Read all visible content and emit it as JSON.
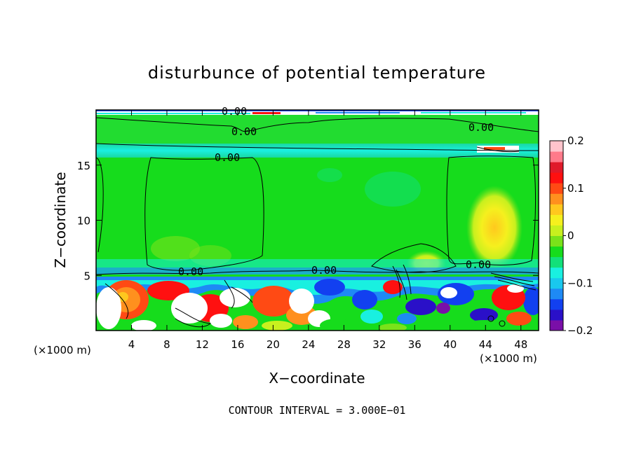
{
  "chart_data": {
    "type": "heatmap",
    "title": "disturbunce of potential temperature",
    "xlabel": "X−coordinate",
    "ylabel": "Z−coordinate",
    "x_unit_left": "(×1000 m)",
    "x_unit_right": "(×1000 m)",
    "xlim": [
      0,
      50
    ],
    "ylim": [
      0,
      20
    ],
    "x_ticks": [
      4,
      8,
      12,
      16,
      20,
      24,
      28,
      32,
      36,
      40,
      44,
      48
    ],
    "y_ticks": [
      5,
      10,
      15
    ],
    "colorbar": {
      "min": -0.2,
      "max": 0.2,
      "tick_values": [
        0.2,
        0.1,
        0,
        -0.1,
        -0.2
      ],
      "tick_labels": [
        "0.2",
        "0.1",
        "0",
        "−0.1",
        "−0.2"
      ],
      "colors": [
        "#7a0fa8",
        "#2a10c8",
        "#1240f0",
        "#1e8af5",
        "#19c8ee",
        "#19f0e0",
        "#12e07a",
        "#16dc1c",
        "#7ae21a",
        "#c8f01e",
        "#f5f01e",
        "#ffc81e",
        "#ff901e",
        "#ff4a14",
        "#ff1010",
        "#e01a2a",
        "#ff7a8a",
        "#ffc4cc"
      ]
    },
    "contour_interval": "CONTOUR INTERVAL = 3.000E−01",
    "contour_labels": [
      "0.00",
      "0.00",
      "0.00",
      "0.00",
      "0.00",
      "0.00",
      "0.00"
    ],
    "grid": false,
    "legend": "colorbar-right"
  }
}
